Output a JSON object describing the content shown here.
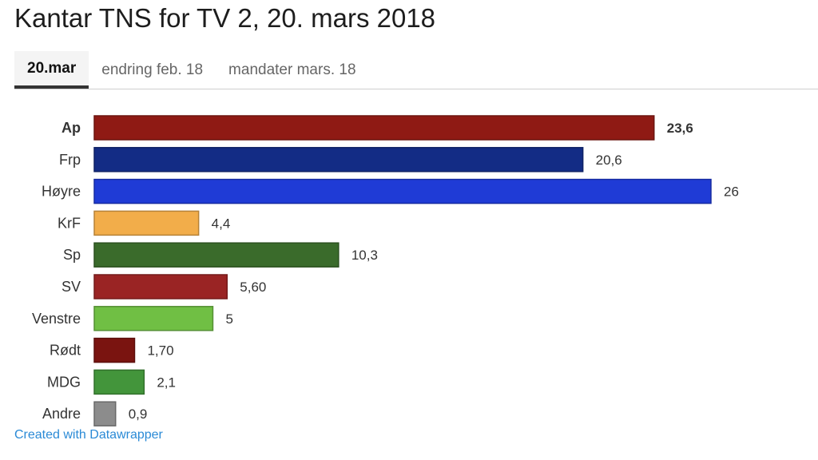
{
  "header": {
    "title": "Kantar TNS for TV 2, 20. mars 2018"
  },
  "tabs": [
    {
      "label": "20.mar",
      "active": true
    },
    {
      "label": "endring feb. 18",
      "active": false
    },
    {
      "label": "mandater mars. 18",
      "active": false
    }
  ],
  "footer": {
    "credit": "Created with Datawrapper"
  },
  "chart_data": {
    "type": "bar",
    "orientation": "horizontal",
    "categories": [
      "Ap",
      "Frp",
      "Høyre",
      "KrF",
      "Sp",
      "SV",
      "Venstre",
      "Rødt",
      "MDG",
      "Andre"
    ],
    "values": [
      23.6,
      20.6,
      26,
      4.4,
      10.3,
      5.6,
      5,
      1.7,
      2.1,
      0.9
    ],
    "value_labels": [
      "23,6",
      "20,6",
      "26",
      "4,4",
      "10,3",
      "5,60",
      "5",
      "1,70",
      "2,1",
      "0,9"
    ],
    "colors": [
      "#8f1a14",
      "#132c85",
      "#1f3bd6",
      "#f2ad4a",
      "#3a6b2b",
      "#9a2424",
      "#70bf44",
      "#7a1410",
      "#43953b",
      "#8c8c8c"
    ],
    "bold_categories": [
      "Ap"
    ],
    "xlim": [
      0,
      26
    ],
    "grid": false
  }
}
